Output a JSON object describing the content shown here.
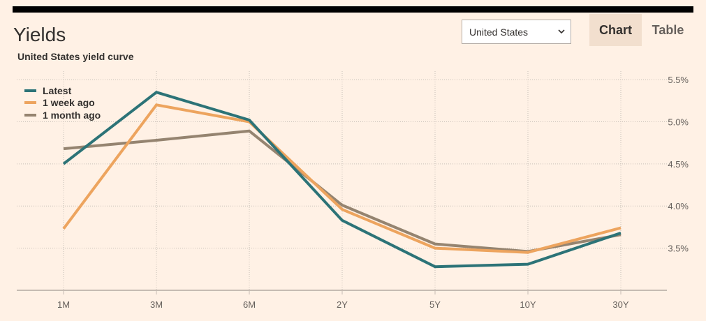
{
  "header": {
    "title": "Yields",
    "subtitle": "United States yield curve",
    "country_select": "United States",
    "tabs": [
      "Chart",
      "Table"
    ]
  },
  "colors": {
    "latest": "#2c7377",
    "one_week": "#eda45e",
    "one_month": "#958470",
    "grid": "#c9bfb7",
    "axis": "#c6bbb2",
    "tick_text": "#66605c"
  },
  "chart_data": {
    "type": "line",
    "title": "United States yield curve",
    "categories": [
      "1M",
      "3M",
      "6M",
      "2Y",
      "5Y",
      "10Y",
      "30Y"
    ],
    "y_tick_labels": [
      "5.5%",
      "5.0%",
      "4.5%",
      "4.0%",
      "3.5%"
    ],
    "y_ticks": [
      5.5,
      5.0,
      4.5,
      4.0,
      3.5
    ],
    "ylim": [
      3.0,
      5.6
    ],
    "grid": true,
    "legend_position": "top-left",
    "series": [
      {
        "name": "Latest",
        "color": "#2c7377",
        "values": [
          4.5,
          5.35,
          5.02,
          3.83,
          3.28,
          3.31,
          3.68
        ]
      },
      {
        "name": "1 week ago",
        "color": "#eda45e",
        "values": [
          3.73,
          5.2,
          5.0,
          3.96,
          3.5,
          3.45,
          3.74
        ]
      },
      {
        "name": "1 month ago",
        "color": "#958470",
        "values": [
          4.68,
          4.78,
          4.89,
          4.01,
          3.55,
          3.46,
          3.66
        ]
      }
    ]
  }
}
